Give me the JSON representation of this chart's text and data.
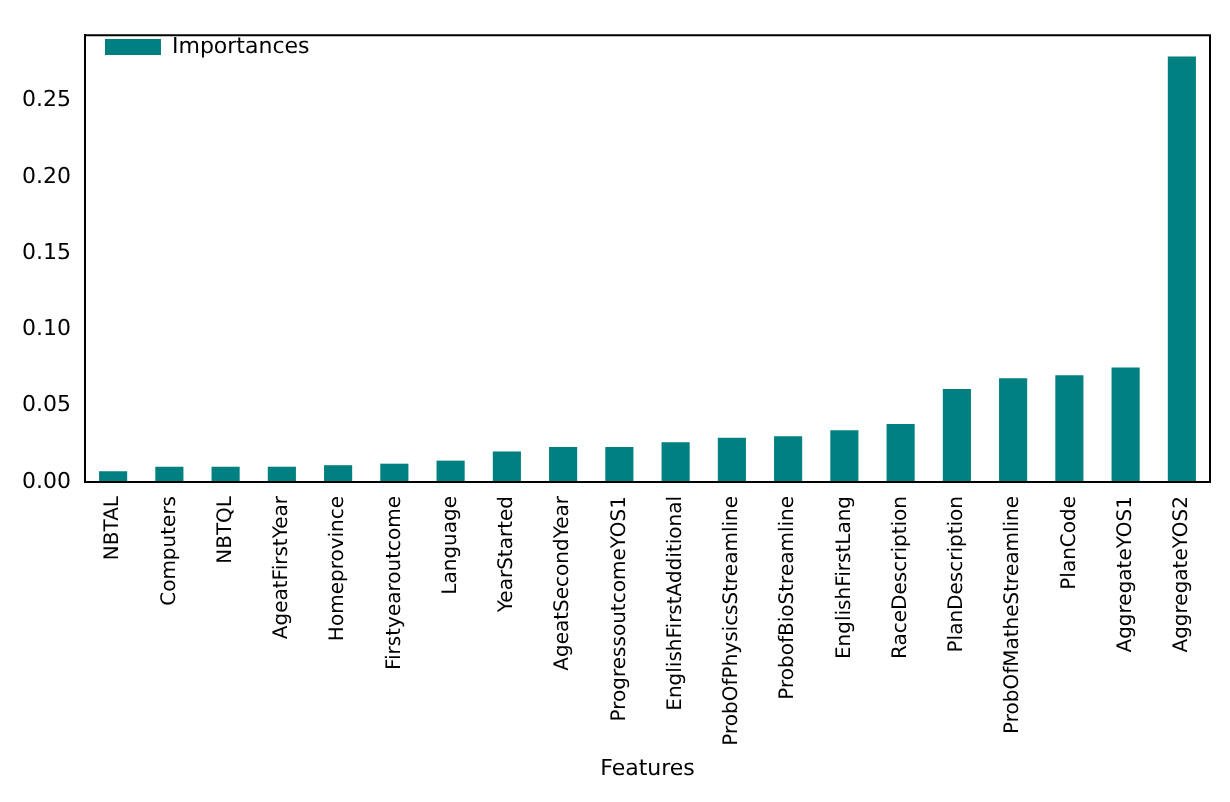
{
  "chart_data": {
    "type": "bar",
    "xlabel": "Features",
    "categories": [
      "NBTAL",
      "Computers",
      "NBTQL",
      "AgeatFirstYear",
      "Homeprovince",
      "Firstyearoutcome",
      "Language",
      "YearStarted",
      "AgeatSecondYear",
      "ProgressoutcomeYOS1",
      "EnglishFirstAdditional",
      "ProbOfPhysicsStreamline",
      "ProbofBioStreamline",
      "EnglishFirstLang",
      "RaceDescription",
      "PlanDescription",
      "ProbOfMatheStreamline",
      "PlanCode",
      "AggregateYOS1",
      "AggregateYOS2"
    ],
    "series": [
      {
        "name": "Importances",
        "color": "#008080",
        "values": [
          0.007,
          0.01,
          0.01,
          0.01,
          0.011,
          0.012,
          0.014,
          0.02,
          0.023,
          0.023,
          0.026,
          0.029,
          0.03,
          0.034,
          0.038,
          0.061,
          0.068,
          0.07,
          0.075,
          0.279
        ]
      }
    ],
    "ylim": [
      0,
      0.293
    ],
    "yticks": [
      {
        "value": 0,
        "label": "0.00"
      },
      {
        "value": 0.05,
        "label": "0.05"
      },
      {
        "value": 0.1,
        "label": "0.10"
      },
      {
        "value": 0.15,
        "label": "0.15"
      },
      {
        "value": 0.2,
        "label": "0.20"
      },
      {
        "value": 0.25,
        "label": "0.25"
      }
    ],
    "legend": "top left",
    "grid": false
  }
}
